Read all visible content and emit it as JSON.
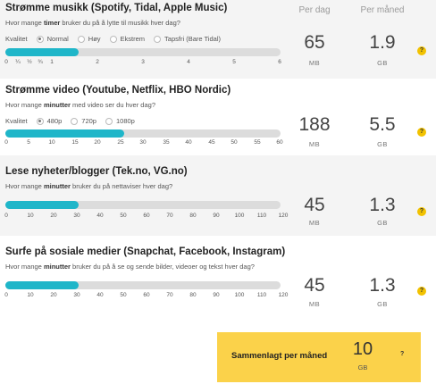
{
  "headers": {
    "per_day": "Per dag",
    "per_month": "Per måned"
  },
  "sections": [
    {
      "title": "Strømme musikk (Spotify, Tidal, Apple Music)",
      "desc_pre": "Hvor mange ",
      "desc_bold": "timer",
      "desc_post": " bruker du på å lytte til musikk hver dag?",
      "quality_label": "Kvalitet",
      "quality_options": [
        "Normal",
        "Høy",
        "Ekstrem",
        "Tapsfri (Bare Tidal)"
      ],
      "quality_selected": 0,
      "ticks": [
        "0",
        "¼",
        "½",
        "¾",
        "1",
        "2",
        "3",
        "4",
        "5",
        "6"
      ],
      "slider_value": "1",
      "per_day": "65",
      "per_day_unit": "MB",
      "per_month": "1.9",
      "per_month_unit": "GB",
      "help": "?"
    },
    {
      "title": "Strømme video (Youtube, Netflix, HBO Nordic)",
      "desc_pre": "Hvor mange ",
      "desc_bold": "minutter",
      "desc_post": " med video ser du hver dag?",
      "quality_label": "Kvalitet",
      "quality_options": [
        "480p",
        "720p",
        "1080p"
      ],
      "quality_selected": 0,
      "ticks": [
        "0",
        "5",
        "10",
        "15",
        "20",
        "25",
        "30",
        "35",
        "40",
        "45",
        "50",
        "55",
        "60"
      ],
      "slider_value": "25",
      "per_day": "188",
      "per_day_unit": "MB",
      "per_month": "5.5",
      "per_month_unit": "GB",
      "help": "?"
    },
    {
      "title": "Lese nyheter/blogger (Tek.no, VG.no)",
      "desc_pre": "Hvor mange ",
      "desc_bold": "minutter",
      "desc_post": " bruker du på nettaviser hver dag?",
      "ticks": [
        "0",
        "10",
        "20",
        "30",
        "40",
        "50",
        "60",
        "70",
        "80",
        "90",
        "100",
        "110",
        "120"
      ],
      "slider_value": "30",
      "per_day": "45",
      "per_day_unit": "MB",
      "per_month": "1.3",
      "per_month_unit": "GB",
      "help": "?"
    },
    {
      "title": "Surfe på sosiale medier (Snapchat, Facebook, Instagram)",
      "desc_pre": "Hvor mange ",
      "desc_bold": "minutter",
      "desc_post": " bruker du på å se og sende bilder, videoer og tekst hver dag?",
      "ticks": [
        "0",
        "10",
        "20",
        "30",
        "40",
        "50",
        "60",
        "70",
        "80",
        "90",
        "100",
        "110",
        "120"
      ],
      "slider_value": "30",
      "per_day": "45",
      "per_day_unit": "MB",
      "per_month": "1.3",
      "per_month_unit": "GB",
      "help": "?"
    }
  ],
  "total": {
    "label": "Sammenlagt per måned",
    "value": "10",
    "unit": "GB",
    "help": "?"
  },
  "colors": {
    "accent": "#1fb6c9",
    "track": "#dcdcdc",
    "help_badge": "#f2c200",
    "total_bg": "#fbd24a"
  }
}
